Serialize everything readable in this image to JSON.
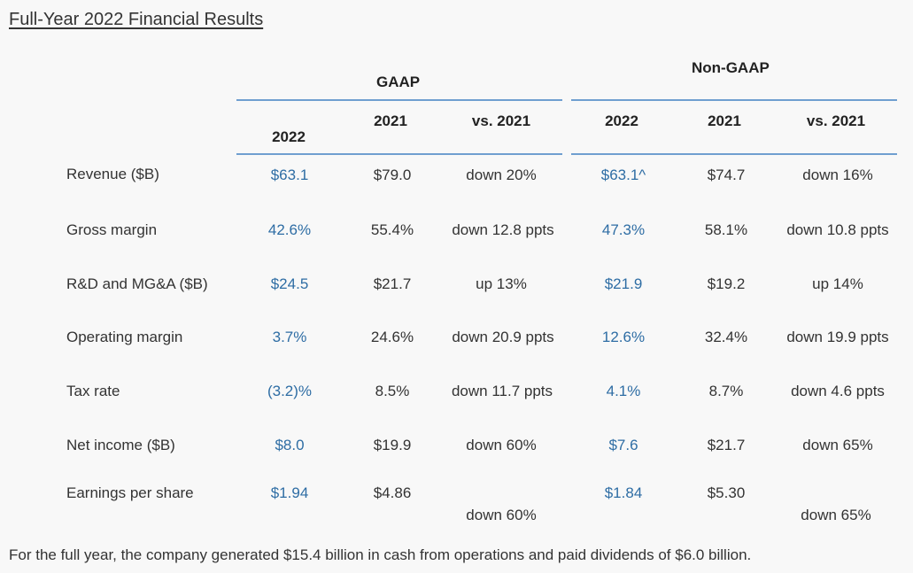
{
  "title": "Full-Year 2022 Financial Results",
  "groups": {
    "gaap": "GAAP",
    "non_gaap": "Non-GAAP"
  },
  "columns": {
    "gaap_2022": "2022",
    "gaap_2021": "2021",
    "gaap_vs": "vs. 2021",
    "ng_2022": "2022",
    "ng_2021": "2021",
    "ng_vs": "vs. 2021"
  },
  "rows": [
    {
      "label": "Revenue ($B)",
      "gaap_2022": "$63.1",
      "gaap_2021": "$79.0",
      "gaap_vs": "down 20%",
      "ng_2022": "$63.1^",
      "ng_2021": "$74.7",
      "ng_vs": "down 16%"
    },
    {
      "label": "Gross margin",
      "gaap_2022": "42.6%",
      "gaap_2021": "55.4%",
      "gaap_vs": "down 12.8 ppts",
      "ng_2022": "47.3%",
      "ng_2021": "58.1%",
      "ng_vs": "down 10.8 ppts"
    },
    {
      "label": "R&D and MG&A ($B)",
      "gaap_2022": "$24.5",
      "gaap_2021": "$21.7",
      "gaap_vs": "up 13%",
      "ng_2022": "$21.9",
      "ng_2021": "$19.2",
      "ng_vs": "up 14%"
    },
    {
      "label": "Operating margin",
      "gaap_2022": "3.7%",
      "gaap_2021": "24.6%",
      "gaap_vs": "down 20.9 ppts",
      "ng_2022": "12.6%",
      "ng_2021": "32.4%",
      "ng_vs": "down 19.9 ppts"
    },
    {
      "label": "Tax rate",
      "gaap_2022": "(3.2)%",
      "gaap_2021": "8.5%",
      "gaap_vs": "down 11.7 ppts",
      "ng_2022": "4.1%",
      "ng_2021": "8.7%",
      "ng_vs": "down 4.6 ppts"
    },
    {
      "label": "Net income ($B)",
      "gaap_2022": "$8.0",
      "gaap_2021": "$19.9",
      "gaap_vs": "down 60%",
      "ng_2022": "$7.6",
      "ng_2021": "$21.7",
      "ng_vs": "down 65%"
    },
    {
      "label": "Earnings per share",
      "gaap_2022": "$1.94",
      "gaap_2021": "$4.86",
      "gaap_vs": "down 60%",
      "ng_2022": "$1.84",
      "ng_2021": "$5.30",
      "ng_vs": "down 65%"
    }
  ],
  "footer": "For the full year, the company generated $15.4 billion in cash from operations and paid dividends of $6.0 billion.",
  "colors": {
    "accent_value": "#2e6da4",
    "rule": "#6f9fd0"
  }
}
